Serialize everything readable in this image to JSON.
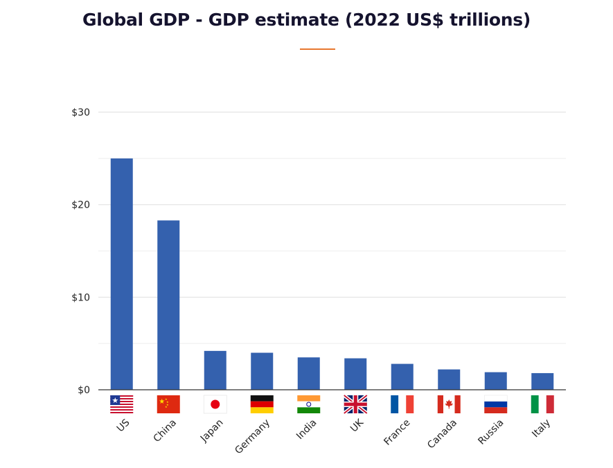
{
  "chart_data": {
    "type": "bar",
    "title": "Global GDP - GDP estimate (2022 US$ trillions)",
    "categories": [
      "US",
      "China",
      "Japan",
      "Germany",
      "India",
      "UK",
      "France",
      "Canada",
      "Russia",
      "Italy"
    ],
    "values": [
      25.0,
      18.3,
      4.2,
      4.0,
      3.5,
      3.4,
      2.8,
      2.2,
      1.9,
      1.8
    ],
    "ylim": [
      0,
      30
    ],
    "yticks": [
      {
        "value": 0,
        "label": "$0"
      },
      {
        "value": 10,
        "label": "$10"
      },
      {
        "value": 20,
        "label": "$20"
      },
      {
        "value": 30,
        "label": "$30"
      }
    ],
    "minor_gridlines": [
      5,
      15,
      25
    ],
    "grid": true,
    "bar_color": "#3461ae",
    "accent_color": "#e8772e",
    "category_icons": [
      "us-flag-icon",
      "china-flag-icon",
      "japan-flag-icon",
      "germany-flag-icon",
      "india-flag-icon",
      "uk-flag-icon",
      "france-flag-icon",
      "canada-flag-icon",
      "russia-flag-icon",
      "italy-flag-icon"
    ]
  }
}
